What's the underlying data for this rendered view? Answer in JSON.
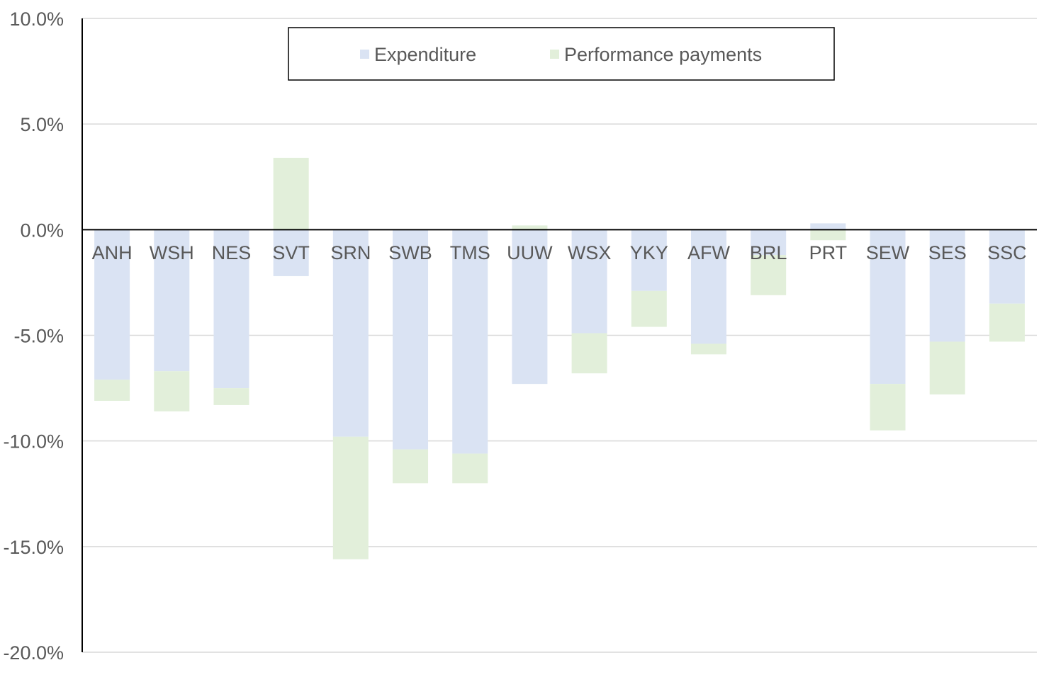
{
  "chart_data": {
    "type": "bar",
    "stacked": true,
    "categories": [
      "ANH",
      "WSH",
      "NES",
      "SVT",
      "SRN",
      "SWB",
      "TMS",
      "UUW",
      "WSX",
      "YKY",
      "AFW",
      "BRL",
      "PRT",
      "SEW",
      "SES",
      "SSC"
    ],
    "series": [
      {
        "name": "Expenditure",
        "color": "#dae3f3",
        "values": [
          -7.1,
          -6.7,
          -7.5,
          -2.2,
          -9.8,
          -10.4,
          -10.6,
          -7.3,
          -4.9,
          -2.9,
          -5.4,
          -1.2,
          0.3,
          -7.3,
          -5.3,
          -3.5
        ]
      },
      {
        "name": "Performance payments",
        "color": "#e2efda",
        "values": [
          -1.0,
          -1.9,
          -0.8,
          3.4,
          -5.8,
          -1.6,
          -1.4,
          0.2,
          -1.9,
          -1.7,
          -0.5,
          -1.9,
          -0.5,
          -2.2,
          -2.5,
          -1.8
        ]
      }
    ],
    "yticks": [
      "10.0%",
      "5.0%",
      "0.0%",
      "-5.0%",
      "-10.0%",
      "-15.0%",
      "-20.0%"
    ],
    "ylim": [
      -20,
      10
    ],
    "grid": true,
    "legend_position": "top-center"
  }
}
